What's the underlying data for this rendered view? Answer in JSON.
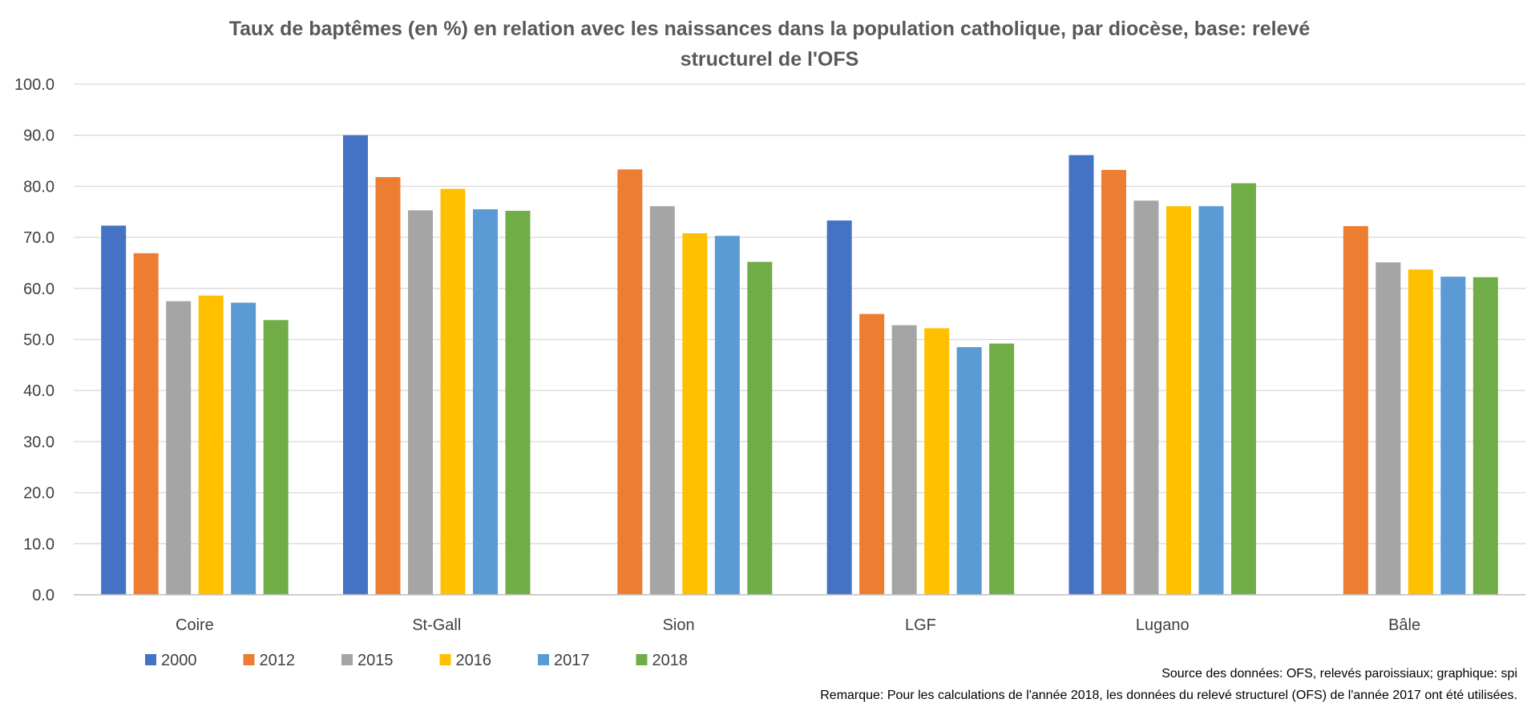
{
  "chart_data": {
    "type": "bar",
    "title_lines": [
      "Taux de baptêmes (en %) en relation avec les naissances dans la population catholique, par diocèse, base: relevé",
      "structurel de l'OFS"
    ],
    "categories": [
      "Coire",
      "St-Gall",
      "Sion",
      "LGF",
      "Lugano",
      "Bâle"
    ],
    "series": [
      {
        "name": "2000",
        "color": "#4472c4",
        "values": [
          72.3,
          90.0,
          null,
          73.3,
          86.1,
          null
        ]
      },
      {
        "name": "2012",
        "color": "#ed7d31",
        "values": [
          66.9,
          81.8,
          83.3,
          55.0,
          83.2,
          72.2
        ]
      },
      {
        "name": "2015",
        "color": "#a5a5a5",
        "values": [
          57.5,
          75.3,
          76.1,
          52.8,
          77.2,
          65.1
        ]
      },
      {
        "name": "2016",
        "color": "#ffc000",
        "values": [
          58.6,
          79.5,
          70.8,
          52.2,
          76.1,
          63.7
        ]
      },
      {
        "name": "2017",
        "color": "#5b9bd5",
        "values": [
          57.2,
          75.5,
          70.3,
          48.5,
          76.1,
          62.3
        ]
      },
      {
        "name": "2018",
        "color": "#70ad47",
        "values": [
          53.8,
          75.2,
          65.2,
          49.2,
          80.6,
          62.2
        ]
      }
    ],
    "y_ticks": [
      "0.0",
      "10.0",
      "20.0",
      "30.0",
      "40.0",
      "50.0",
      "60.0",
      "70.0",
      "80.0",
      "90.0",
      "100.0"
    ],
    "ylim": [
      0,
      100
    ],
    "grid": true,
    "legend_position": "bottom-left",
    "notes": [
      "Source des données: OFS, relevés paroissiaux; graphique: spi",
      "Remarque: Pour les calculations de l'année 2018, les données du relevé structurel (OFS) de l'année 2017 ont été utilisées."
    ]
  }
}
